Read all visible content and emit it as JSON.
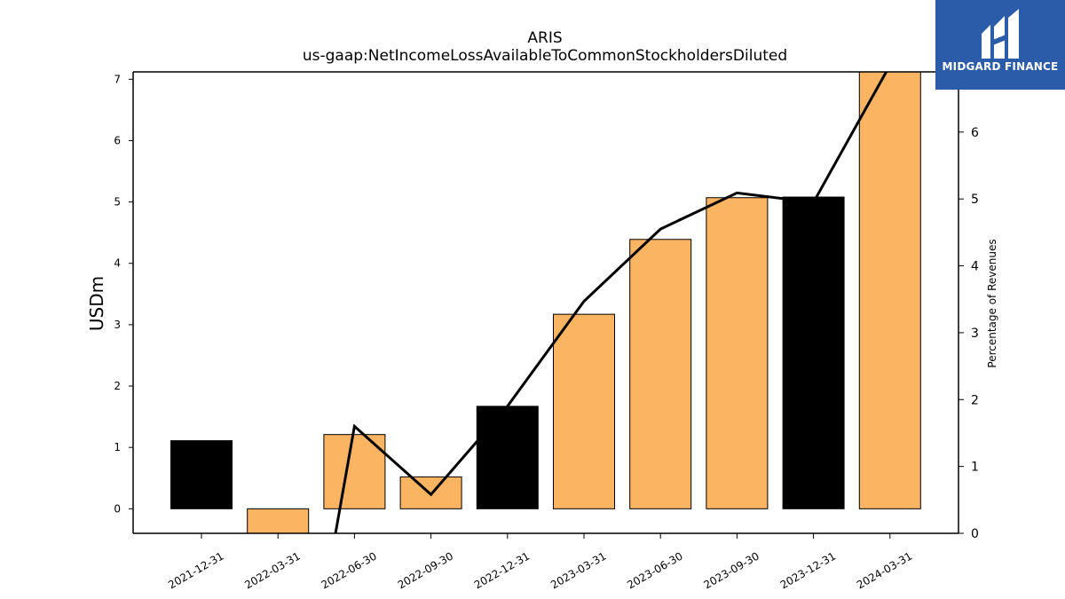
{
  "chart_data": {
    "type": "bar",
    "title": "ARIS",
    "subtitle": "us-gaap:NetIncomeLossAvailableToCommonStockholdersDiluted",
    "ylabel": "USDm",
    "ylabel_right": "Percentage of Revenues",
    "categories": [
      "2021-12-31",
      "2022-03-31",
      "2022-06-30",
      "2022-09-30",
      "2022-12-31",
      "2023-03-31",
      "2023-06-30",
      "2023-09-30",
      "2023-12-31",
      "2024-03-31"
    ],
    "ylim": [
      -0.4,
      7.12
    ],
    "ylim_right": [
      0,
      6.9
    ],
    "yticks": [
      0,
      1,
      2,
      3,
      4,
      5,
      6,
      7
    ],
    "yticks_right": [
      0,
      1,
      2,
      3,
      4,
      5,
      6
    ],
    "series": [
      {
        "type": "bar",
        "values": [
          1.11,
          -0.4,
          1.21,
          0.52,
          1.67,
          3.17,
          4.39,
          5.07,
          5.08,
          7.12
        ],
        "bar_colors": [
          "#000000",
          "#fbb461",
          "#fbb461",
          "#fbb461",
          "#000000",
          "#fbb461",
          "#fbb461",
          "#fbb461",
          "#000000",
          "#fbb461"
        ]
      },
      {
        "type": "line",
        "axis": "right",
        "color": "#000000",
        "values": [
          null,
          null,
          1.6,
          0.58,
          1.9,
          3.47,
          4.55,
          5.09,
          4.95,
          7.0
        ]
      }
    ],
    "grid": false
  },
  "logo": {
    "text": "MIDGARD FINANCE"
  }
}
